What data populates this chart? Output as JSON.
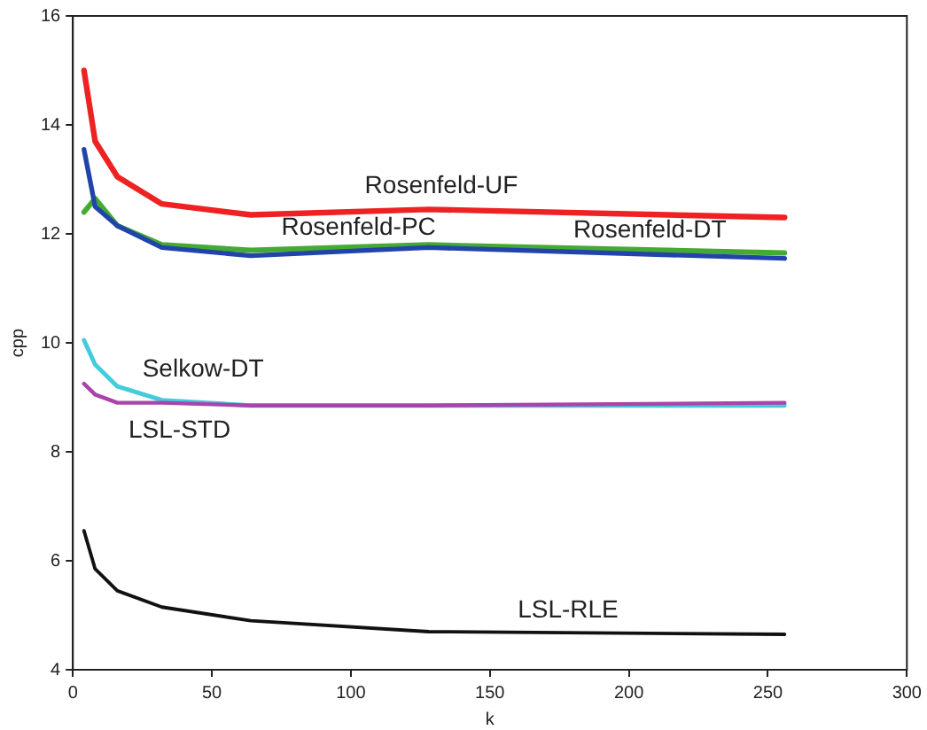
{
  "chart_data": {
    "type": "line",
    "xlabel": "k",
    "ylabel": "cpp",
    "x": [
      4,
      8,
      16,
      32,
      64,
      128,
      256
    ],
    "xlim": [
      0,
      300
    ],
    "xticks": [
      0,
      50,
      100,
      150,
      200,
      250,
      300
    ],
    "ylim": [
      4,
      16
    ],
    "yticks": [
      4,
      6,
      8,
      10,
      12,
      14,
      16
    ],
    "grid": false,
    "legend": false,
    "marker": "none",
    "line_style": "solid",
    "series": [
      {
        "name": "Rosenfeld-UF",
        "color": "#ee2222",
        "values": [
          15.0,
          13.7,
          13.05,
          12.55,
          12.35,
          12.45,
          12.3
        ]
      },
      {
        "name": "Rosenfeld-PC",
        "color": "#44aa33",
        "values": [
          12.4,
          12.65,
          12.15,
          11.8,
          11.7,
          11.8,
          11.65
        ]
      },
      {
        "name": "Rosenfeld-DT",
        "color": "#2244aa",
        "values": [
          13.55,
          12.5,
          12.15,
          11.75,
          11.6,
          11.75,
          11.55
        ]
      },
      {
        "name": "Selkow-DT",
        "color": "#44ccdd",
        "values": [
          10.05,
          9.6,
          9.2,
          8.95,
          8.85,
          8.85,
          8.85
        ]
      },
      {
        "name": "LSL-STD",
        "color": "#aa44aa",
        "values": [
          9.25,
          9.05,
          8.9,
          8.9,
          8.85,
          8.85,
          8.9
        ]
      },
      {
        "name": "LSL-RLE",
        "color": "#111111",
        "values": [
          6.55,
          5.85,
          5.45,
          5.15,
          4.9,
          4.7,
          4.65
        ]
      }
    ]
  }
}
